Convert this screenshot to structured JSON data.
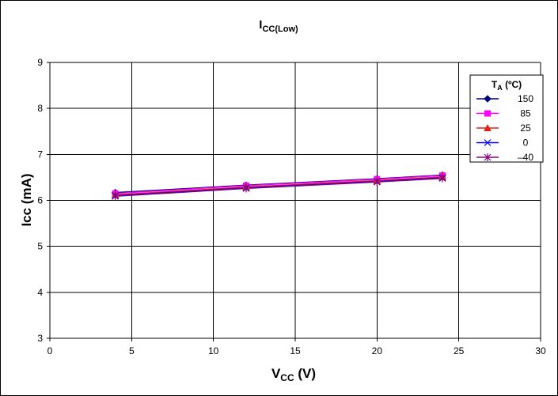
{
  "chart_data": {
    "type": "line",
    "title": {
      "main": "I",
      "sub": "CC(Low)"
    },
    "xlabel": {
      "main": "V",
      "sub": "CC",
      "suffix": " (V)"
    },
    "ylabel": "Icc (mA)",
    "xlim": [
      0,
      30
    ],
    "ylim": [
      3,
      9
    ],
    "x_ticks": [
      "0",
      "5",
      "10",
      "15",
      "20",
      "25",
      "30"
    ],
    "y_ticks": [
      "3",
      "4",
      "5",
      "6",
      "7",
      "8",
      "9"
    ],
    "x_tick_values": [
      0,
      5,
      10,
      15,
      20,
      25,
      30
    ],
    "y_tick_values": [
      3,
      4,
      5,
      6,
      7,
      8,
      9
    ],
    "grid": true,
    "legend_position": "top-right",
    "legend_title": {
      "main": "T",
      "sub": "A",
      "suffix": " (ºC)"
    },
    "x": [
      4,
      12,
      20,
      24
    ],
    "series": [
      {
        "name": "150",
        "values": [
          6.17,
          6.33,
          6.47,
          6.55
        ],
        "color": "#000080",
        "marker": "diamond"
      },
      {
        "name": "85",
        "values": [
          6.15,
          6.32,
          6.46,
          6.54
        ],
        "color": "#ff00ff",
        "marker": "square"
      },
      {
        "name": "25",
        "values": [
          6.12,
          6.29,
          6.43,
          6.51
        ],
        "color": "#e0201b",
        "marker": "triangle"
      },
      {
        "name": "0",
        "values": [
          6.1,
          6.27,
          6.41,
          6.49
        ],
        "color": "#0000ff",
        "marker": "x"
      },
      {
        "name": "–40",
        "values": [
          6.09,
          6.26,
          6.4,
          6.48
        ],
        "color": "#800080",
        "marker": "star"
      }
    ]
  }
}
